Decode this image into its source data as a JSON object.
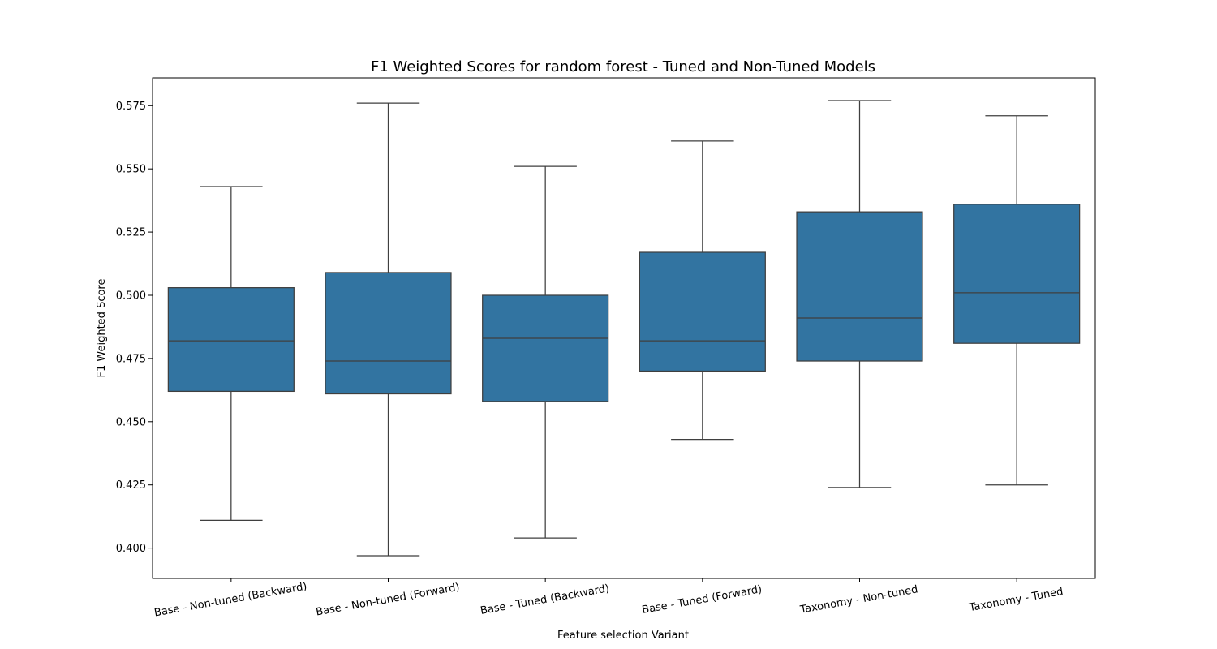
{
  "chart_data": {
    "type": "box",
    "title": "F1 Weighted Scores for random forest - Tuned and Non-Tuned Models",
    "xlabel": "Feature selection Variant",
    "ylabel": "F1 Weighted Score",
    "ylim": [
      0.388,
      0.586
    ],
    "yticks": [
      0.4,
      0.425,
      0.45,
      0.475,
      0.5,
      0.525,
      0.55,
      0.575
    ],
    "ytick_labels": [
      "0.400",
      "0.425",
      "0.450",
      "0.475",
      "0.500",
      "0.525",
      "0.550",
      "0.575"
    ],
    "grid": false,
    "box_color": "#3274a1",
    "line_color": "#3f3f3f",
    "categories": [
      "Base - Non-tuned (Backward)",
      "Base - Non-tuned (Forward)",
      "Base - Tuned (Backward)",
      "Base - Tuned (Forward)",
      "Taxonomy - Non-tuned",
      "Taxonomy - Tuned"
    ],
    "boxes": [
      {
        "whisker_low": 0.411,
        "q1": 0.462,
        "median": 0.482,
        "q3": 0.503,
        "whisker_high": 0.543
      },
      {
        "whisker_low": 0.397,
        "q1": 0.461,
        "median": 0.474,
        "q3": 0.509,
        "whisker_high": 0.576
      },
      {
        "whisker_low": 0.404,
        "q1": 0.458,
        "median": 0.483,
        "q3": 0.5,
        "whisker_high": 0.551
      },
      {
        "whisker_low": 0.443,
        "q1": 0.47,
        "median": 0.482,
        "q3": 0.517,
        "whisker_high": 0.561
      },
      {
        "whisker_low": 0.424,
        "q1": 0.474,
        "median": 0.491,
        "q3": 0.533,
        "whisker_high": 0.577
      },
      {
        "whisker_low": 0.425,
        "q1": 0.481,
        "median": 0.501,
        "q3": 0.536,
        "whisker_high": 0.571
      }
    ]
  }
}
